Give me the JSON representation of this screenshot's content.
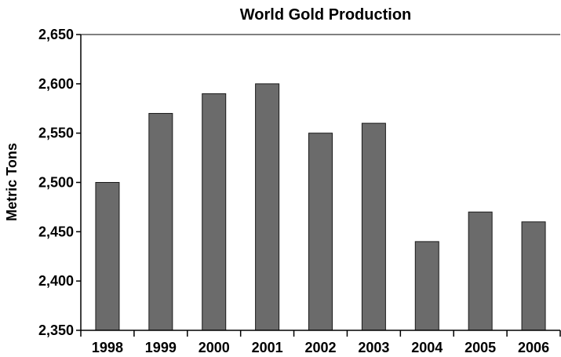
{
  "chart_data": {
    "type": "bar",
    "title": "World Gold Production",
    "xlabel": "",
    "ylabel": "Metric Tons",
    "categories": [
      "1998",
      "1999",
      "2000",
      "2001",
      "2002",
      "2003",
      "2004",
      "2005",
      "2006"
    ],
    "values": [
      2500,
      2570,
      2590,
      2600,
      2550,
      2560,
      2440,
      2470,
      2460
    ],
    "ylim": [
      2350,
      2650
    ],
    "yticks": [
      2350,
      2400,
      2450,
      2500,
      2550,
      2600,
      2650
    ],
    "ytick_labels": [
      "2,350",
      "2,400",
      "2,450",
      "2,500",
      "2,550",
      "2,600",
      "2,650"
    ],
    "grid": false,
    "legend": "none",
    "bar_color": "#6b6b6b",
    "bar_edge_color": "#1a1a1a"
  }
}
